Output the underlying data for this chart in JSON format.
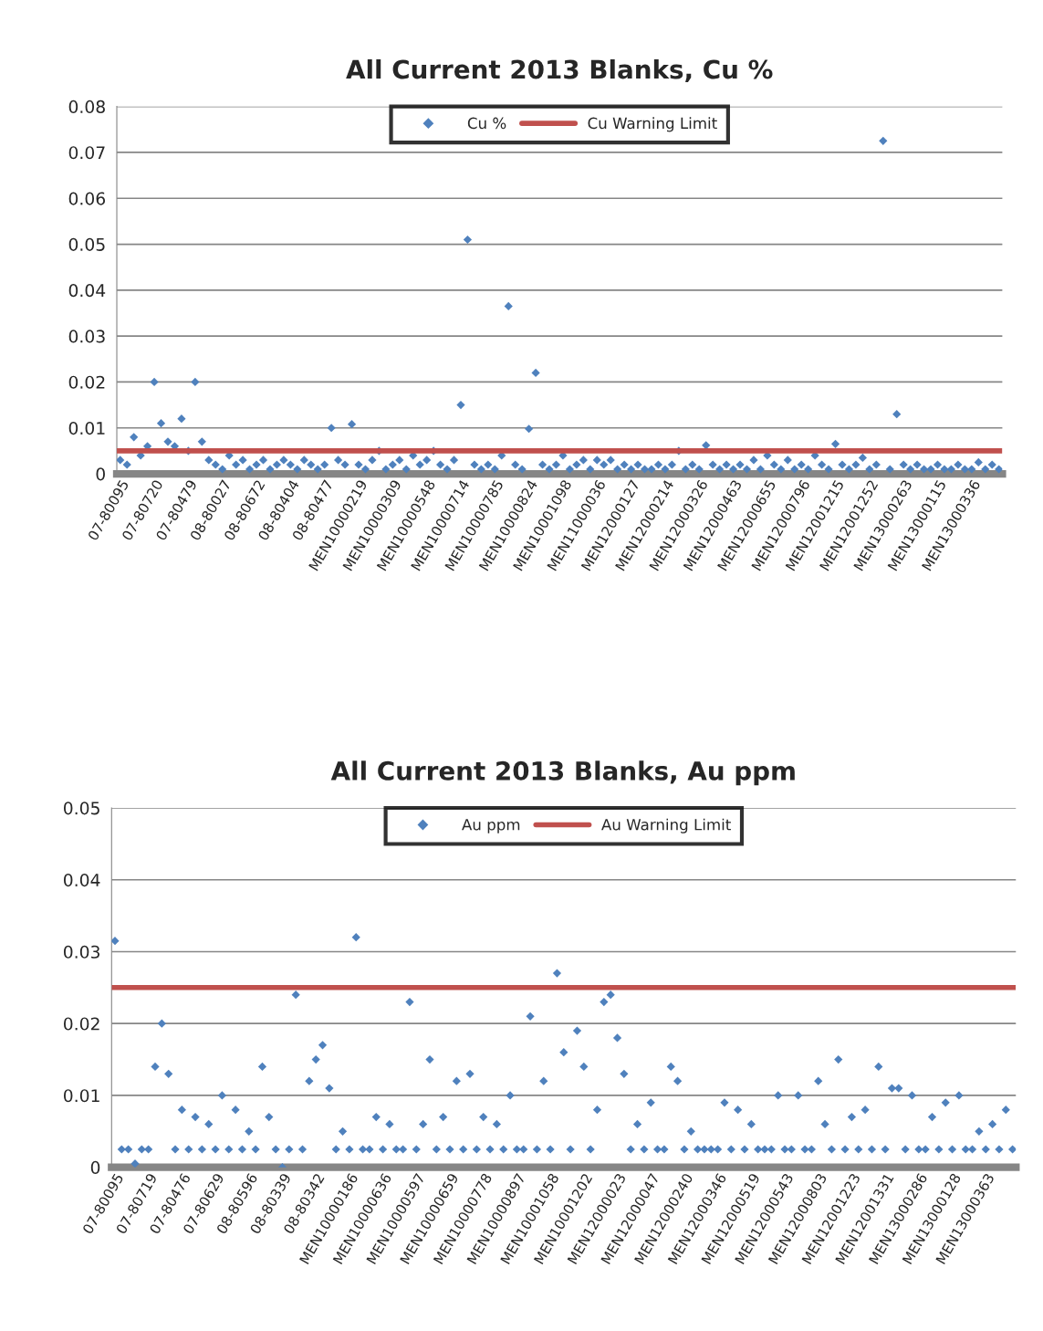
{
  "chart_data": [
    {
      "type": "scatter",
      "title": "All Current 2013 Blanks, Cu %",
      "categories": [
        "07-80095",
        null,
        null,
        null,
        null,
        "07-80720",
        null,
        null,
        null,
        null,
        "07-80479",
        null,
        null,
        null,
        null,
        "08-80027",
        null,
        null,
        null,
        null,
        "08-80672",
        null,
        null,
        null,
        null,
        "08-80404",
        null,
        null,
        null,
        null,
        "08-80477",
        null,
        null,
        null,
        null,
        "MEN10000219",
        null,
        null,
        null,
        null,
        "MEN10000309",
        null,
        null,
        null,
        null,
        "MEN10000548",
        null,
        null,
        null,
        null,
        "MEN10000714",
        null,
        null,
        null,
        null,
        "MEN10000785",
        null,
        null,
        null,
        null,
        "MEN10000824",
        null,
        null,
        null,
        null,
        "MEN10001098",
        null,
        null,
        null,
        null,
        "MEN11000036",
        null,
        null,
        null,
        null,
        "MEN12000127",
        null,
        null,
        null,
        null,
        "MEN12000214",
        null,
        null,
        null,
        null,
        "MEN12000326",
        null,
        null,
        null,
        null,
        "MEN12000463",
        null,
        null,
        null,
        null,
        "MEN12000655",
        null,
        null,
        null,
        null,
        "MEN12000796",
        null,
        null,
        null,
        null,
        "MEN12001215",
        null,
        null,
        null,
        null,
        "MEN12001252",
        null,
        null,
        null,
        null,
        "MEN13000263",
        null,
        null,
        null,
        null,
        "MEN13000115",
        null,
        null,
        null,
        null,
        "MEN13000336",
        null,
        null,
        null,
        null
      ],
      "series": [
        {
          "name": "Cu %",
          "color": "#4f81bd",
          "values": [
            0.003,
            0.002,
            0.008,
            0.004,
            0.006,
            0.02,
            0.011,
            0.007,
            0.006,
            0.012,
            0.005,
            0.02,
            0.007,
            0.003,
            0.002,
            0.001,
            0.004,
            0.002,
            0.003,
            0.001,
            0.002,
            0.003,
            0.001,
            0.002,
            0.003,
            0.002,
            0.001,
            0.003,
            0.002,
            0.001,
            0.002,
            0.01,
            0.003,
            0.002,
            0.0108,
            0.002,
            0.001,
            0.003,
            0.005,
            0.001,
            0.002,
            0.003,
            0.001,
            0.004,
            0.002,
            0.003,
            0.005,
            0.002,
            0.001,
            0.003,
            0.015,
            0.051,
            0.002,
            0.001,
            0.002,
            0.001,
            0.004,
            0.0365,
            0.002,
            0.001,
            0.0098,
            0.022,
            0.002,
            0.001,
            0.002,
            0.004,
            0.001,
            0.002,
            0.003,
            0.001,
            0.003,
            0.002,
            0.003,
            0.001,
            0.002,
            0.001,
            0.002,
            0.001,
            0.001,
            0.002,
            0.001,
            0.002,
            0.005,
            0.001,
            0.002,
            0.001,
            0.0062,
            0.002,
            0.001,
            0.002,
            0.001,
            0.002,
            0.001,
            0.003,
            0.001,
            0.004,
            0.002,
            0.001,
            0.003,
            0.001,
            0.002,
            0.001,
            0.004,
            0.002,
            0.001,
            0.0065,
            0.002,
            0.001,
            0.002,
            0.0035,
            0.001,
            0.002,
            0.0725,
            0.001,
            0.013,
            0.002,
            0.001,
            0.002,
            0.001,
            0.001,
            0.002,
            0.001,
            0.001,
            0.002,
            0.001,
            0.001,
            0.0025,
            0.001,
            0.002,
            0.001
          ]
        }
      ],
      "ref_lines": [
        {
          "axis": "y",
          "value": 0.005,
          "label": "Cu Warning Limit",
          "color": "#c0504d"
        }
      ],
      "ylim": [
        0,
        0.08
      ],
      "yticks": [
        0,
        0.01,
        0.02,
        0.03,
        0.04,
        0.05,
        0.06,
        0.07,
        0.08
      ],
      "grid": "y",
      "legend": "top",
      "marker": "diamond"
    },
    {
      "type": "scatter",
      "title": "All Current 2013 Blanks, Au ppm",
      "categories": [
        "07-80095",
        null,
        null,
        null,
        null,
        "07-80719",
        null,
        null,
        null,
        null,
        "07-80476",
        null,
        null,
        null,
        null,
        "07-80629",
        null,
        null,
        null,
        null,
        "08-80596",
        null,
        null,
        null,
        null,
        "08-80339",
        null,
        null,
        null,
        null,
        "08-80342",
        null,
        null,
        null,
        null,
        "MEN10000186",
        null,
        null,
        null,
        null,
        "MEN10000636",
        null,
        null,
        null,
        null,
        "MEN10000597",
        null,
        null,
        null,
        null,
        "MEN10000659",
        null,
        null,
        null,
        null,
        "MEN10000778",
        null,
        null,
        null,
        null,
        "MEN10000897",
        null,
        null,
        null,
        null,
        "MEN10001058",
        null,
        null,
        null,
        null,
        "MEN10001202",
        null,
        null,
        null,
        null,
        "MEN12000023",
        null,
        null,
        null,
        null,
        "MEN12000047",
        null,
        null,
        null,
        null,
        "MEN12000240",
        null,
        null,
        null,
        null,
        "MEN12000346",
        null,
        null,
        null,
        null,
        "MEN12000519",
        null,
        null,
        null,
        null,
        "MEN12000543",
        null,
        null,
        null,
        null,
        "MEN12000803",
        null,
        null,
        null,
        null,
        "MEN12001223",
        null,
        null,
        null,
        null,
        "MEN12001331",
        null,
        null,
        null,
        null,
        "MEN13000286",
        null,
        null,
        null,
        null,
        "MEN13000128",
        null,
        null,
        null,
        null,
        "MEN13000363",
        null,
        null,
        null,
        null
      ],
      "series": [
        {
          "name": "Au ppm",
          "color": "#4f81bd",
          "values": [
            0.0315,
            0.0025,
            0.0025,
            0.0005,
            0.0025,
            0.0025,
            0.014,
            0.02,
            0.013,
            0.0025,
            0.008,
            0.0025,
            0.007,
            0.0025,
            0.006,
            0.0025,
            0.01,
            0.0025,
            0.008,
            0.0025,
            0.005,
            0.0025,
            0.014,
            0.007,
            0.0025,
            0,
            0.0025,
            0.024,
            0.0025,
            0.012,
            0.015,
            0.017,
            0.011,
            0.0025,
            0.005,
            0.0025,
            0.032,
            0.0025,
            0.0025,
            0.007,
            0.0025,
            0.006,
            0.0025,
            0.0025,
            0.023,
            0.0025,
            0.006,
            0.015,
            0.0025,
            0.007,
            0.0025,
            0.012,
            0.0025,
            0.013,
            0.0025,
            0.007,
            0.0025,
            0.006,
            0.0025,
            0.01,
            0.0025,
            0.0025,
            0.021,
            0.0025,
            0.012,
            0.0025,
            0.027,
            0.016,
            0.0025,
            0.019,
            0.014,
            0.0025,
            0.008,
            0.023,
            0.024,
            0.018,
            0.013,
            0.0025,
            0.006,
            0.0025,
            0.009,
            0.0025,
            0.0025,
            0.014,
            0.012,
            0.0025,
            0.005,
            0.0025,
            0.0025,
            0.0025,
            0.0025,
            0.009,
            0.0025,
            0.008,
            0.0025,
            0.006,
            0.0025,
            0.0025,
            0.0025,
            0.01,
            0.0025,
            0.0025,
            0.01,
            0.0025,
            0.0025,
            0.012,
            0.006,
            0.0025,
            0.015,
            0.0025,
            0.007,
            0.0025,
            0.008,
            0.0025,
            0.014,
            0.0025,
            0.011,
            0.011,
            0.0025,
            0.01,
            0.0025,
            0.0025,
            0.007,
            0.0025,
            0.009,
            0.0025,
            0.01,
            0.0025,
            0.0025,
            0.005,
            0.0025,
            0.006,
            0.0025,
            0.008,
            0.0025
          ]
        }
      ],
      "ref_lines": [
        {
          "axis": "y",
          "value": 0.025,
          "label": "Au Warning Limit",
          "color": "#c0504d"
        }
      ],
      "ylim": [
        0,
        0.05
      ],
      "yticks": [
        0,
        0.01,
        0.02,
        0.03,
        0.04,
        0.05
      ],
      "grid": "y",
      "legend": "top",
      "marker": "diamond"
    }
  ]
}
